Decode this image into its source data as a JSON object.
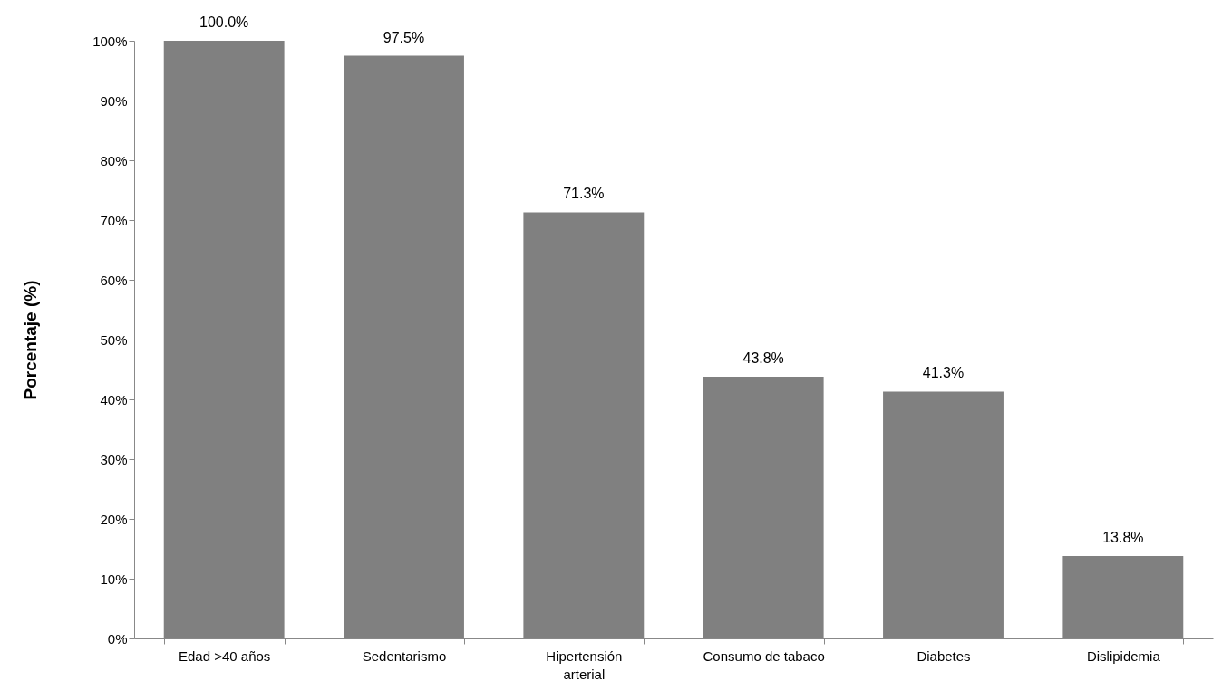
{
  "chart_data": {
    "type": "bar",
    "ylabel": "Porcentaje (%)",
    "categories": [
      "Edad >40 años",
      "Sedentarismo",
      "Hipertensión arterial",
      "Consumo de tabaco",
      "Diabetes",
      "Dislipidemia"
    ],
    "values": [
      100.0,
      97.5,
      71.3,
      43.8,
      41.3,
      13.8
    ],
    "value_labels": [
      "100.0%",
      "97.5%",
      "71.3%",
      "43.8%",
      "41.3%",
      "13.8%"
    ],
    "color": "#808080",
    "ylim": [
      0,
      100
    ],
    "yticks": [
      {
        "value": 0,
        "label": "0%"
      },
      {
        "value": 10,
        "label": "10%"
      },
      {
        "value": 20,
        "label": "20%"
      },
      {
        "value": 30,
        "label": "30%"
      },
      {
        "value": 40,
        "label": "40%"
      },
      {
        "value": 50,
        "label": "50%"
      },
      {
        "value": 60,
        "label": "60%"
      },
      {
        "value": 70,
        "label": "70%"
      },
      {
        "value": 80,
        "label": "80%"
      },
      {
        "value": 90,
        "label": "90%"
      },
      {
        "value": 100,
        "label": "100%"
      }
    ],
    "grid": false
  }
}
